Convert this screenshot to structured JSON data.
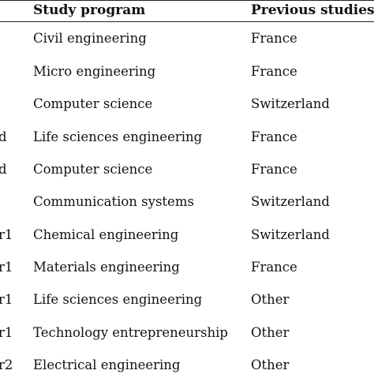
{
  "table": {
    "headers": [
      "Study program",
      "Previous studies"
    ],
    "rows": [
      {
        "prefix": "",
        "program": "Civil engineering",
        "previous": "France"
      },
      {
        "prefix": "",
        "program": "Micro engineering",
        "previous": "France"
      },
      {
        "prefix": "",
        "program": "Computer science",
        "previous": "Switzerland"
      },
      {
        "prefix": "d",
        "program": "Life sciences engineering",
        "previous": "France"
      },
      {
        "prefix": "d",
        "program": "Computer science",
        "previous": "France"
      },
      {
        "prefix": "",
        "program": "Communication systems",
        "previous": "Switzerland"
      },
      {
        "prefix": "r1",
        "program": "Chemical engineering",
        "previous": "Switzerland"
      },
      {
        "prefix": "r1",
        "program": "Materials engineering",
        "previous": "France"
      },
      {
        "prefix": "r1",
        "program": "Life sciences engineering",
        "previous": "Other"
      },
      {
        "prefix": "r1",
        "program": "Technology entrepreneurship",
        "previous": "Other"
      },
      {
        "prefix": "r2",
        "program": "Electrical engineering",
        "previous": "Other"
      }
    ]
  }
}
